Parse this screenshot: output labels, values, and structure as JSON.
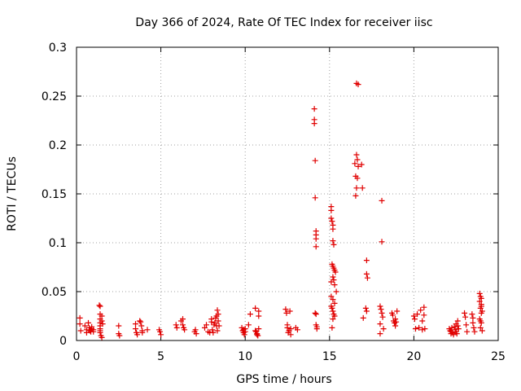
{
  "chart_data": {
    "type": "scatter",
    "title": "Day 366 of 2024, Rate Of TEC Index for receiver iisc",
    "xlabel": "GPS time / hours",
    "ylabel": "ROTI / TECUs",
    "xlim": [
      0,
      25
    ],
    "ylim": [
      0,
      0.3
    ],
    "x_ticks": [
      0,
      5,
      10,
      15,
      20,
      25
    ],
    "x_tick_labels": [
      "0",
      "5",
      "10",
      "15",
      "20",
      "25"
    ],
    "y_ticks": [
      0,
      0.05,
      0.1,
      0.15,
      0.2,
      0.25,
      0.3
    ],
    "y_tick_labels": [
      "0",
      "0.05",
      "0.1",
      "0.15",
      "0.2",
      "0.25",
      "0.3"
    ],
    "grid": true,
    "marker": "plus",
    "color": "#e00000",
    "points": [
      [
        0.2,
        0.023
      ],
      [
        0.2,
        0.017
      ],
      [
        0.25,
        0.01
      ],
      [
        0.5,
        0.015
      ],
      [
        0.6,
        0.011
      ],
      [
        0.6,
        0.008
      ],
      [
        0.7,
        0.018
      ],
      [
        0.75,
        0.013
      ],
      [
        0.8,
        0.01
      ],
      [
        0.85,
        0.009
      ],
      [
        0.9,
        0.014
      ],
      [
        0.9,
        0.012
      ],
      [
        1.0,
        0.011
      ],
      [
        1.0,
        0.009
      ],
      [
        1.35,
        0.036
      ],
      [
        1.4,
        0.035
      ],
      [
        1.4,
        0.027
      ],
      [
        1.4,
        0.022
      ],
      [
        1.4,
        0.018
      ],
      [
        1.4,
        0.015
      ],
      [
        1.4,
        0.012
      ],
      [
        1.4,
        0.01
      ],
      [
        1.4,
        0.008
      ],
      [
        1.45,
        0.005
      ],
      [
        1.5,
        0.003
      ],
      [
        1.5,
        0.02
      ],
      [
        1.5,
        0.025
      ],
      [
        1.55,
        0.017
      ],
      [
        2.5,
        0.015
      ],
      [
        2.5,
        0.007
      ],
      [
        2.55,
        0.005
      ],
      [
        3.5,
        0.017
      ],
      [
        3.5,
        0.012
      ],
      [
        3.55,
        0.008
      ],
      [
        3.6,
        0.006
      ],
      [
        3.75,
        0.02
      ],
      [
        3.8,
        0.019
      ],
      [
        3.85,
        0.015
      ],
      [
        3.9,
        0.01
      ],
      [
        3.9,
        0.008
      ],
      [
        4.2,
        0.011
      ],
      [
        4.9,
        0.011
      ],
      [
        4.95,
        0.009
      ],
      [
        5.0,
        0.006
      ],
      [
        5.9,
        0.016
      ],
      [
        5.95,
        0.013
      ],
      [
        6.2,
        0.02
      ],
      [
        6.3,
        0.022
      ],
      [
        6.3,
        0.016
      ],
      [
        6.35,
        0.013
      ],
      [
        6.4,
        0.011
      ],
      [
        7.0,
        0.009
      ],
      [
        7.05,
        0.011
      ],
      [
        7.1,
        0.007
      ],
      [
        7.6,
        0.013
      ],
      [
        7.7,
        0.016
      ],
      [
        7.8,
        0.009
      ],
      [
        7.9,
        0.008
      ],
      [
        8.0,
        0.022
      ],
      [
        8.0,
        0.019
      ],
      [
        8.05,
        0.011
      ],
      [
        8.1,
        0.008
      ],
      [
        8.15,
        0.016
      ],
      [
        8.2,
        0.018
      ],
      [
        8.25,
        0.023
      ],
      [
        8.3,
        0.025
      ],
      [
        8.3,
        0.015
      ],
      [
        8.35,
        0.01
      ],
      [
        8.35,
        0.031
      ],
      [
        8.4,
        0.02
      ],
      [
        8.4,
        0.027
      ],
      [
        8.45,
        0.015
      ],
      [
        9.8,
        0.013
      ],
      [
        9.85,
        0.01
      ],
      [
        9.9,
        0.011
      ],
      [
        9.9,
        0.008
      ],
      [
        9.95,
        0.006
      ],
      [
        10.0,
        0.009
      ],
      [
        10.0,
        0.012
      ],
      [
        10.2,
        0.016
      ],
      [
        10.3,
        0.027
      ],
      [
        10.6,
        0.033
      ],
      [
        10.6,
        0.01
      ],
      [
        10.65,
        0.009
      ],
      [
        10.7,
        0.007
      ],
      [
        10.7,
        0.006
      ],
      [
        10.75,
        0.005
      ],
      [
        10.8,
        0.012
      ],
      [
        10.8,
        0.03
      ],
      [
        10.8,
        0.025
      ],
      [
        12.4,
        0.032
      ],
      [
        12.45,
        0.028
      ],
      [
        12.5,
        0.016
      ],
      [
        12.5,
        0.013
      ],
      [
        12.55,
        0.008
      ],
      [
        12.6,
        0.01
      ],
      [
        12.65,
        0.03
      ],
      [
        12.7,
        0.006
      ],
      [
        12.7,
        0.012
      ],
      [
        13.0,
        0.013
      ],
      [
        13.1,
        0.011
      ],
      [
        14.1,
        0.237
      ],
      [
        14.1,
        0.226
      ],
      [
        14.1,
        0.222
      ],
      [
        14.15,
        0.184
      ],
      [
        14.15,
        0.146
      ],
      [
        14.2,
        0.112
      ],
      [
        14.2,
        0.108
      ],
      [
        14.2,
        0.104
      ],
      [
        14.2,
        0.096
      ],
      [
        14.15,
        0.028
      ],
      [
        14.2,
        0.027
      ],
      [
        14.2,
        0.016
      ],
      [
        14.25,
        0.014
      ],
      [
        14.25,
        0.012
      ],
      [
        15.1,
        0.137
      ],
      [
        15.1,
        0.133
      ],
      [
        15.1,
        0.125
      ],
      [
        15.15,
        0.122
      ],
      [
        15.2,
        0.118
      ],
      [
        15.2,
        0.114
      ],
      [
        15.2,
        0.102
      ],
      [
        15.25,
        0.098
      ],
      [
        15.15,
        0.078
      ],
      [
        15.2,
        0.076
      ],
      [
        15.25,
        0.074
      ],
      [
        15.3,
        0.072
      ],
      [
        15.35,
        0.07
      ],
      [
        15.2,
        0.065
      ],
      [
        15.25,
        0.062
      ],
      [
        15.1,
        0.06
      ],
      [
        15.3,
        0.057
      ],
      [
        15.4,
        0.05
      ],
      [
        15.1,
        0.045
      ],
      [
        15.2,
        0.042
      ],
      [
        15.3,
        0.038
      ],
      [
        15.1,
        0.035
      ],
      [
        15.15,
        0.033
      ],
      [
        15.2,
        0.03
      ],
      [
        15.25,
        0.027
      ],
      [
        15.3,
        0.025
      ],
      [
        15.2,
        0.022
      ],
      [
        15.15,
        0.013
      ],
      [
        16.6,
        0.263
      ],
      [
        16.7,
        0.262
      ],
      [
        16.6,
        0.19
      ],
      [
        16.65,
        0.185
      ],
      [
        16.5,
        0.181
      ],
      [
        16.7,
        0.178
      ],
      [
        16.55,
        0.168
      ],
      [
        16.65,
        0.166
      ],
      [
        16.6,
        0.156
      ],
      [
        16.55,
        0.148
      ],
      [
        16.9,
        0.18
      ],
      [
        16.95,
        0.156
      ],
      [
        17.0,
        0.023
      ],
      [
        17.2,
        0.082
      ],
      [
        17.2,
        0.068
      ],
      [
        17.25,
        0.064
      ],
      [
        17.15,
        0.033
      ],
      [
        17.2,
        0.03
      ],
      [
        18.1,
        0.143
      ],
      [
        18.1,
        0.101
      ],
      [
        18.0,
        0.035
      ],
      [
        18.05,
        0.032
      ],
      [
        18.1,
        0.028
      ],
      [
        18.15,
        0.024
      ],
      [
        18.0,
        0.017
      ],
      [
        18.2,
        0.012
      ],
      [
        18.0,
        0.007
      ],
      [
        18.7,
        0.028
      ],
      [
        18.75,
        0.026
      ],
      [
        18.8,
        0.02
      ],
      [
        18.85,
        0.018
      ],
      [
        18.9,
        0.022
      ],
      [
        18.9,
        0.015
      ],
      [
        19.0,
        0.03
      ],
      [
        18.95,
        0.019
      ],
      [
        20.0,
        0.025
      ],
      [
        20.05,
        0.022
      ],
      [
        20.1,
        0.012
      ],
      [
        20.2,
        0.027
      ],
      [
        20.3,
        0.013
      ],
      [
        20.4,
        0.031
      ],
      [
        20.5,
        0.02
      ],
      [
        20.5,
        0.011
      ],
      [
        20.6,
        0.034
      ],
      [
        20.6,
        0.026
      ],
      [
        20.65,
        0.012
      ],
      [
        22.1,
        0.012
      ],
      [
        22.15,
        0.01
      ],
      [
        22.2,
        0.009
      ],
      [
        22.2,
        0.007
      ],
      [
        22.25,
        0.013
      ],
      [
        22.3,
        0.008
      ],
      [
        22.35,
        0.006
      ],
      [
        22.4,
        0.014
      ],
      [
        22.45,
        0.011
      ],
      [
        22.5,
        0.017
      ],
      [
        22.5,
        0.009
      ],
      [
        22.55,
        0.007
      ],
      [
        22.6,
        0.02
      ],
      [
        22.6,
        0.015
      ],
      [
        22.65,
        0.012
      ],
      [
        23.0,
        0.028
      ],
      [
        23.05,
        0.024
      ],
      [
        23.1,
        0.016
      ],
      [
        23.15,
        0.009
      ],
      [
        23.45,
        0.027
      ],
      [
        23.5,
        0.023
      ],
      [
        23.5,
        0.018
      ],
      [
        23.55,
        0.013
      ],
      [
        23.6,
        0.009
      ],
      [
        23.9,
        0.048
      ],
      [
        23.95,
        0.045
      ],
      [
        23.9,
        0.04
      ],
      [
        24.0,
        0.037
      ],
      [
        23.95,
        0.033
      ],
      [
        24.0,
        0.028
      ],
      [
        23.9,
        0.022
      ],
      [
        24.0,
        0.018
      ],
      [
        23.95,
        0.013
      ],
      [
        24.05,
        0.01
      ],
      [
        24.0,
        0.035
      ],
      [
        24.05,
        0.03
      ],
      [
        24.0,
        0.043
      ],
      [
        23.95,
        0.02
      ]
    ]
  }
}
